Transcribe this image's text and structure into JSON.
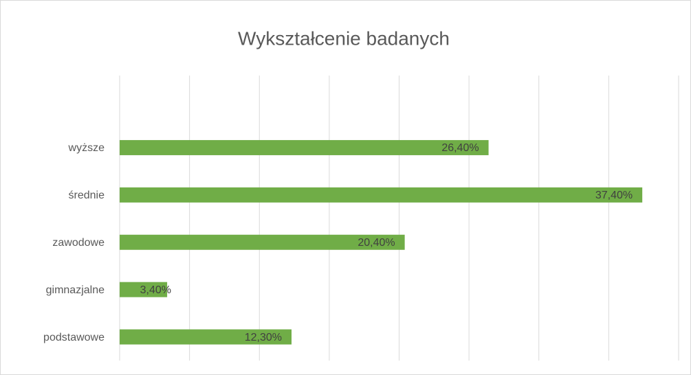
{
  "chart_data": {
    "type": "barh",
    "title": "Wykształcenie badanych",
    "categories": [
      "podstawowe",
      "gimnazjalne",
      "zawodowe",
      "średnie",
      "wyższe"
    ],
    "values": [
      12.3,
      3.4,
      20.4,
      37.4,
      26.4
    ],
    "value_labels": [
      "12,30%",
      "3,40%",
      "20,40%",
      "37,40%",
      "26,40%"
    ],
    "color": "#70ad47",
    "xlim": [
      0,
      40
    ],
    "xticks": [
      0,
      5,
      10,
      15,
      20,
      25,
      30,
      35,
      40
    ],
    "grid": true
  }
}
